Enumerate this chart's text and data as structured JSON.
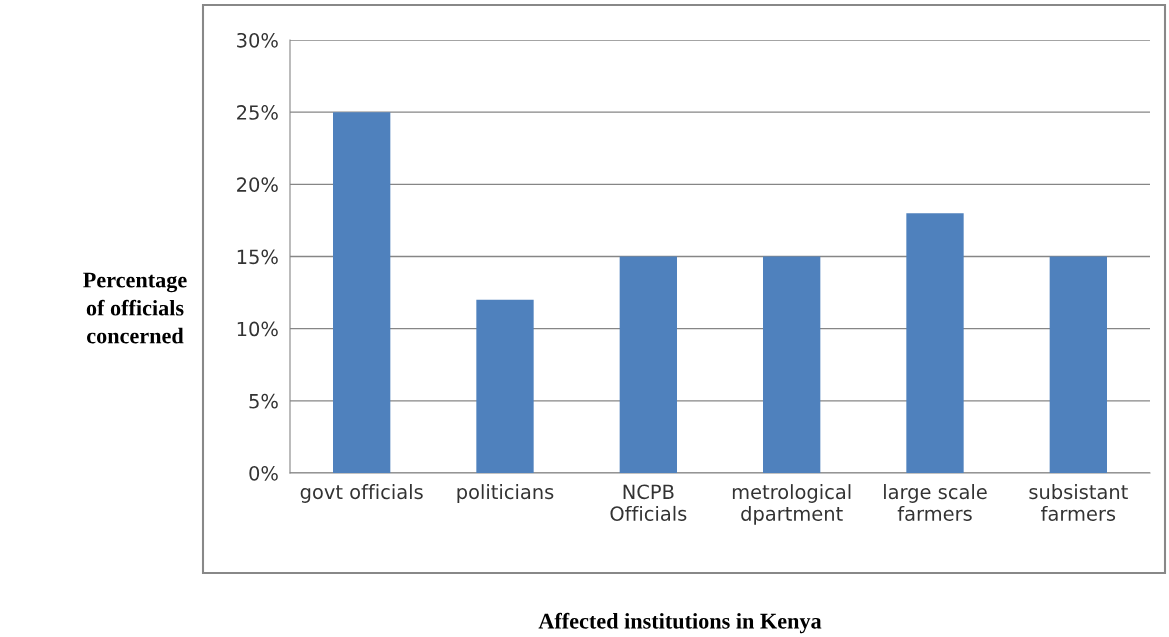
{
  "chart_data": {
    "type": "bar",
    "xlabel": "Affected institutions in Kenya",
    "ylabel": "Percentage\nof officials\nconcerned",
    "categories": [
      "govt officials",
      "politicians",
      "NCPB\nOfficials",
      "metrological\ndpartment",
      "large scale\nfarmers",
      "subsistant\nfarmers"
    ],
    "values": [
      25,
      12,
      15,
      15,
      18,
      15
    ],
    "color": "#4f81bd",
    "ylim": [
      0,
      30
    ],
    "yticks": [
      {
        "value": 0,
        "label": "0%"
      },
      {
        "value": 5,
        "label": "5%"
      },
      {
        "value": 10,
        "label": "10%"
      },
      {
        "value": 15,
        "label": "15%"
      },
      {
        "value": 20,
        "label": "20%"
      },
      {
        "value": 25,
        "label": "25%"
      },
      {
        "value": 30,
        "label": "30%"
      }
    ],
    "grid": "y",
    "legend": false
  }
}
